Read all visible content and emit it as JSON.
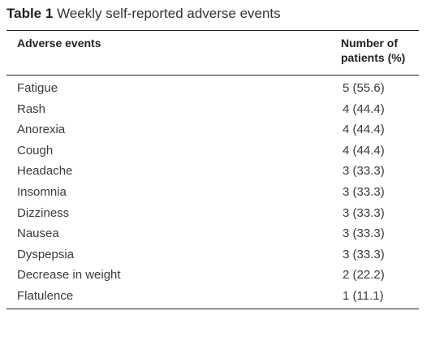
{
  "table": {
    "caption_label": "Table 1",
    "caption_text": "Weekly self-reported adverse events",
    "headers": {
      "event": "Adverse events",
      "number_line1": "Number of",
      "number_line2": "patients (%)"
    },
    "rows": [
      {
        "event": "Fatigue",
        "number": "5 (55.6)"
      },
      {
        "event": "Rash",
        "number": "4 (44.4)"
      },
      {
        "event": "Anorexia",
        "number": "4 (44.4)"
      },
      {
        "event": "Cough",
        "number": "4 (44.4)"
      },
      {
        "event": "Headache",
        "number": "3 (33.3)"
      },
      {
        "event": "Insomnia",
        "number": "3 (33.3)"
      },
      {
        "event": "Dizziness",
        "number": "3 (33.3)"
      },
      {
        "event": "Nausea",
        "number": "3 (33.3)"
      },
      {
        "event": "Dyspepsia",
        "number": "3 (33.3)"
      },
      {
        "event": "Decrease in weight",
        "number": "2 (22.2)"
      },
      {
        "event": "Flatulence",
        "number": "1 (11.1)"
      }
    ]
  }
}
